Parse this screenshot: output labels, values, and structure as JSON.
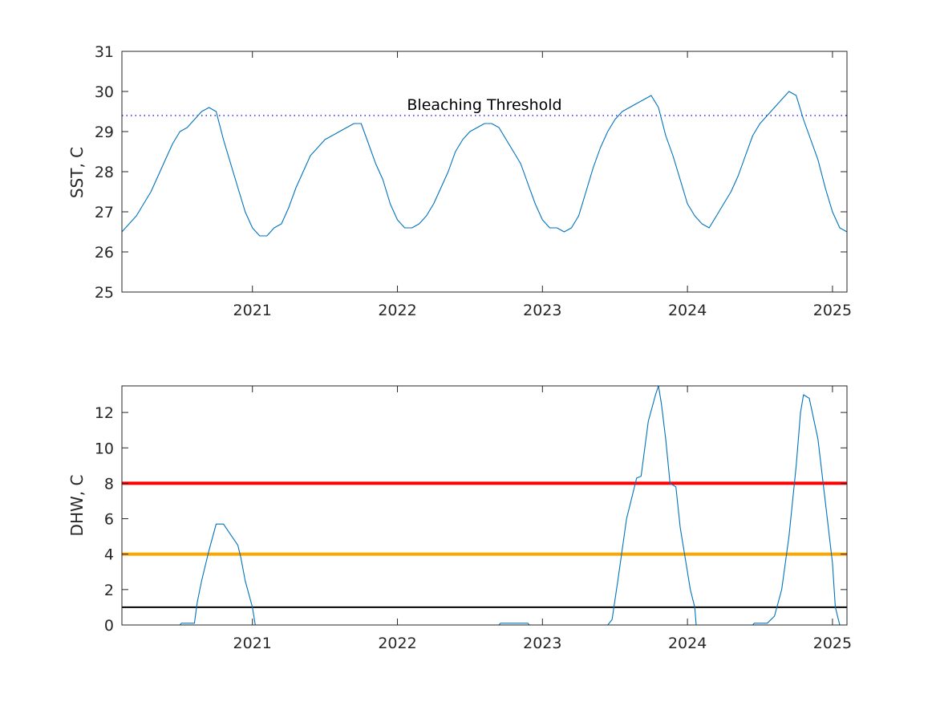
{
  "chart_data": [
    {
      "type": "line",
      "ylabel": "SST, C",
      "xlim": [
        2020.1,
        2025.1
      ],
      "ylim": [
        25,
        31
      ],
      "grid": false,
      "x_ticks": [
        2021,
        2022,
        2023,
        2024,
        2025
      ],
      "x_tick_labels": [
        "2021",
        "2022",
        "2023",
        "2024",
        "2025"
      ],
      "y_ticks": [
        25,
        26,
        27,
        28,
        29,
        30,
        31
      ],
      "y_tick_labels": [
        "25",
        "26",
        "27",
        "28",
        "29",
        "30",
        "31"
      ],
      "colors": {
        "series": "#0072bd",
        "threshold": "#0000ff"
      },
      "threshold": {
        "label": "Bleaching Threshold",
        "y": 29.4,
        "style": "dotted"
      },
      "series": [
        {
          "x": [
            2020.1,
            2020.15,
            2020.2,
            2020.25,
            2020.3,
            2020.35,
            2020.4,
            2020.45,
            2020.5,
            2020.55,
            2020.6,
            2020.65,
            2020.7,
            2020.75,
            2020.8,
            2020.85,
            2020.9,
            2020.95,
            2021.0,
            2021.05,
            2021.1,
            2021.15,
            2021.2,
            2021.25,
            2021.3,
            2021.35,
            2021.4,
            2021.45,
            2021.5,
            2021.55,
            2021.6,
            2021.65,
            2021.7,
            2021.75,
            2021.8,
            2021.85,
            2021.9,
            2021.95,
            2022.0,
            2022.05,
            2022.1,
            2022.15,
            2022.2,
            2022.25,
            2022.3,
            2022.35,
            2022.4,
            2022.45,
            2022.5,
            2022.55,
            2022.6,
            2022.65,
            2022.7,
            2022.75,
            2022.8,
            2022.85,
            2022.9,
            2022.95,
            2023.0,
            2023.05,
            2023.1,
            2023.15,
            2023.2,
            2023.25,
            2023.3,
            2023.35,
            2023.4,
            2023.45,
            2023.5,
            2023.55,
            2023.6,
            2023.65,
            2023.7,
            2023.75,
            2023.8,
            2023.85,
            2023.9,
            2023.95,
            2024.0,
            2024.05,
            2024.1,
            2024.15,
            2024.2,
            2024.25,
            2024.3,
            2024.35,
            2024.4,
            2024.45,
            2024.5,
            2024.55,
            2024.6,
            2024.65,
            2024.7,
            2024.75,
            2024.8,
            2024.85,
            2024.9,
            2024.95,
            2025.0,
            2025.05,
            2025.1
          ],
          "y": [
            26.5,
            26.7,
            26.9,
            27.2,
            27.5,
            27.9,
            28.3,
            28.7,
            29.0,
            29.1,
            29.3,
            29.5,
            29.6,
            29.5,
            28.8,
            28.2,
            27.6,
            27.0,
            26.6,
            26.4,
            26.4,
            26.6,
            26.7,
            27.1,
            27.6,
            28.0,
            28.4,
            28.6,
            28.8,
            28.9,
            29.0,
            29.1,
            29.2,
            29.2,
            28.7,
            28.2,
            27.8,
            27.2,
            26.8,
            26.6,
            26.6,
            26.7,
            26.9,
            27.2,
            27.6,
            28.0,
            28.5,
            28.8,
            29.0,
            29.1,
            29.2,
            29.2,
            29.1,
            28.8,
            28.5,
            28.2,
            27.7,
            27.2,
            26.8,
            26.6,
            26.6,
            26.5,
            26.6,
            26.9,
            27.5,
            28.1,
            28.6,
            29.0,
            29.3,
            29.5,
            29.6,
            29.7,
            29.8,
            29.9,
            29.6,
            28.9,
            28.4,
            27.8,
            27.2,
            26.9,
            26.7,
            26.6,
            26.9,
            27.2,
            27.5,
            27.9,
            28.4,
            28.9,
            29.2,
            29.4,
            29.6,
            29.8,
            30.0,
            29.9,
            29.3,
            28.8,
            28.3,
            27.6,
            27.0,
            26.6,
            26.5
          ]
        }
      ]
    },
    {
      "type": "line",
      "ylabel": "DHW, C",
      "xlim": [
        2020.1,
        2025.1
      ],
      "ylim": [
        0,
        13.5
      ],
      "grid": false,
      "x_ticks": [
        2021,
        2022,
        2023,
        2024,
        2025
      ],
      "x_tick_labels": [
        "2021",
        "2022",
        "2023",
        "2024",
        "2025"
      ],
      "y_ticks": [
        0,
        2,
        4,
        6,
        8,
        10,
        12
      ],
      "y_tick_labels": [
        "0",
        "2",
        "4",
        "6",
        "8",
        "10",
        "12"
      ],
      "colors": {
        "series": "#0072bd"
      },
      "reference_lines": [
        {
          "y": 8,
          "color": "#ff0000"
        },
        {
          "y": 4,
          "color": "#ffa500"
        },
        {
          "y": 1,
          "color": "#000000"
        }
      ],
      "series": [
        {
          "x": [
            2020.1,
            2020.5,
            2020.51,
            2020.6,
            2020.62,
            2020.65,
            2020.7,
            2020.75,
            2020.79,
            2020.8,
            2020.9,
            2020.92,
            2020.95,
            2021.0,
            2021.02,
            2021.1,
            2022.7,
            2022.71,
            2022.9,
            2022.91,
            2023.45,
            2023.48,
            2023.52,
            2023.58,
            2023.65,
            2023.68,
            2023.73,
            2023.78,
            2023.8,
            2023.82,
            2023.85,
            2023.88,
            2023.92,
            2023.95,
            2024.0,
            2024.02,
            2024.05,
            2024.06,
            2024.1,
            2024.45,
            2024.46,
            2024.55,
            2024.6,
            2024.65,
            2024.7,
            2024.75,
            2024.78,
            2024.8,
            2024.84,
            2024.9,
            2024.95,
            2025.0,
            2025.02,
            2025.05,
            2025.1
          ],
          "y": [
            0,
            0,
            0.1,
            0.1,
            1.3,
            2.5,
            4.2,
            5.7,
            5.7,
            5.7,
            4.5,
            3.8,
            2.5,
            1.0,
            0,
            0,
            0,
            0.1,
            0.1,
            0,
            0,
            0.3,
            2.5,
            6.0,
            8.3,
            8.4,
            11.5,
            13.0,
            13.5,
            12.5,
            10.5,
            8.0,
            7.8,
            5.5,
            3.0,
            2.0,
            1.0,
            0,
            0,
            0,
            0.1,
            0.1,
            0.5,
            2.0,
            5.0,
            9.0,
            12.0,
            13.0,
            12.8,
            10.5,
            7.0,
            3.5,
            1.0,
            0,
            0
          ]
        }
      ]
    }
  ]
}
